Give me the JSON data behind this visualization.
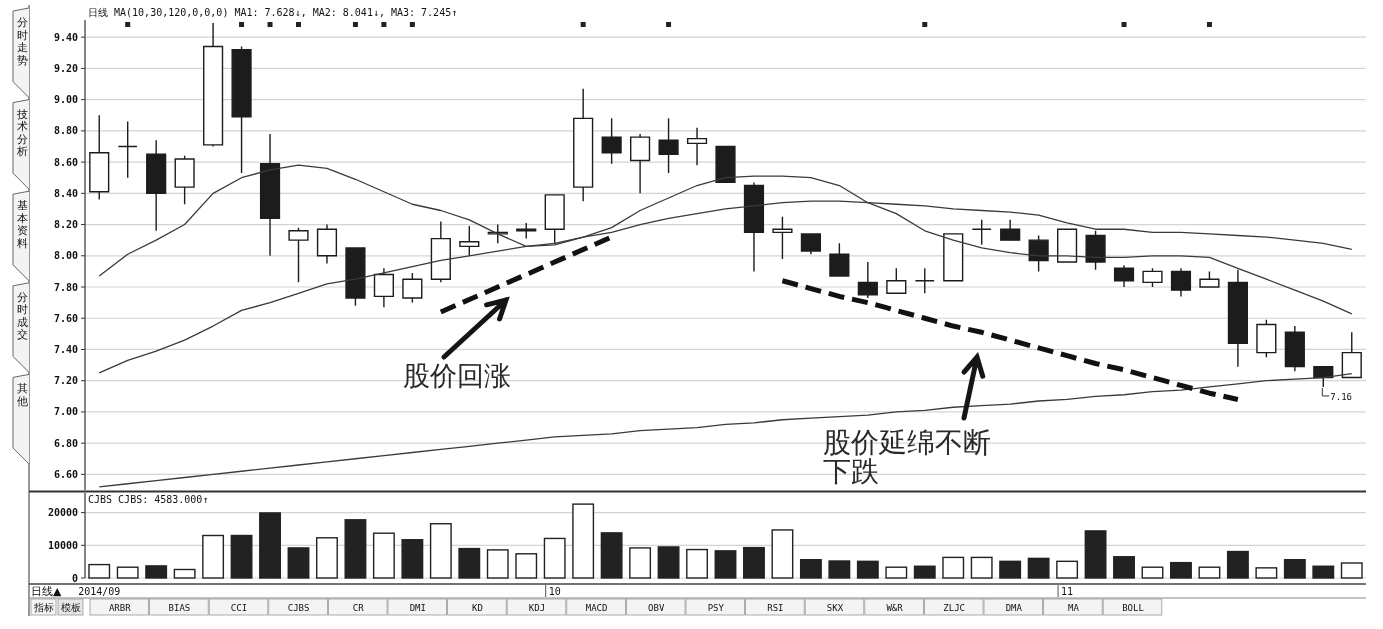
{
  "chart_data": [
    {
      "type": "other",
      "annotations": [
        "分时走势",
        "技术分析",
        "基本资料",
        "分时成交",
        "其他"
      ]
    },
    {
      "type": "candlestick",
      "title": "日线 MA(10,30,120,0,0,0) MA1: 7.628↓, MA2: 8.041↓, MA3: 7.245↑",
      "categories": [
        null,
        null,
        null,
        null,
        null,
        null,
        null,
        null,
        null,
        null,
        null,
        null,
        null,
        null,
        null,
        null,
        null,
        null,
        null,
        null,
        null,
        null,
        null,
        null,
        null,
        null,
        null,
        null,
        null,
        null,
        null,
        null,
        null,
        null,
        null,
        null,
        null,
        null,
        null,
        null,
        null,
        null,
        null,
        null,
        null
      ],
      "ohlc": [
        [
          8.41,
          8.9,
          8.36,
          8.66
        ],
        [
          8.7,
          8.86,
          8.5,
          8.7
        ],
        [
          8.65,
          8.74,
          8.16,
          8.4
        ],
        [
          8.44,
          8.64,
          8.33,
          8.62
        ],
        [
          8.71,
          9.49,
          8.7,
          9.34
        ],
        [
          9.32,
          9.34,
          8.53,
          8.89
        ],
        [
          8.59,
          8.78,
          8.0,
          8.24
        ],
        [
          8.1,
          8.18,
          7.83,
          8.16
        ],
        [
          8.0,
          8.2,
          7.95,
          8.17
        ],
        [
          8.05,
          8.05,
          7.68,
          7.73
        ],
        [
          7.74,
          7.92,
          7.67,
          7.88
        ],
        [
          7.73,
          7.89,
          7.7,
          7.85
        ],
        [
          7.85,
          8.22,
          7.83,
          8.11
        ],
        [
          8.06,
          8.19,
          8.0,
          8.09
        ],
        [
          8.14,
          8.2,
          8.08,
          8.15
        ],
        [
          8.16,
          8.21,
          8.11,
          8.17
        ],
        [
          8.17,
          8.39,
          8.08,
          8.39
        ],
        [
          8.44,
          9.07,
          8.35,
          8.88
        ],
        [
          8.76,
          8.88,
          8.59,
          8.66
        ],
        [
          8.61,
          8.78,
          8.4,
          8.76
        ],
        [
          8.74,
          8.88,
          8.53,
          8.65
        ],
        [
          8.72,
          8.82,
          8.58,
          8.75
        ],
        [
          8.7,
          8.7,
          8.47,
          8.47
        ],
        [
          8.45,
          8.47,
          7.9,
          8.15
        ],
        [
          8.15,
          8.25,
          7.98,
          8.17
        ],
        [
          8.14,
          8.14,
          8.01,
          8.03
        ],
        [
          8.01,
          8.08,
          7.87,
          7.87
        ],
        [
          7.83,
          7.96,
          7.73,
          7.75
        ],
        [
          7.76,
          7.92,
          7.76,
          7.84
        ],
        [
          7.84,
          7.92,
          7.76,
          7.84
        ],
        [
          7.84,
          8.14,
          7.84,
          8.14
        ],
        [
          8.17,
          8.23,
          8.07,
          8.17
        ],
        [
          8.17,
          8.23,
          8.1,
          8.1
        ],
        [
          8.1,
          8.13,
          7.9,
          7.97
        ],
        [
          7.96,
          8.17,
          7.96,
          8.17
        ],
        [
          8.13,
          8.16,
          7.91,
          7.96
        ],
        [
          7.92,
          7.94,
          7.8,
          7.84
        ],
        [
          7.83,
          7.92,
          7.8,
          7.9
        ],
        [
          7.9,
          7.92,
          7.74,
          7.78
        ],
        [
          7.8,
          7.9,
          7.8,
          7.85
        ],
        [
          7.83,
          7.91,
          7.29,
          7.44
        ],
        [
          7.38,
          7.59,
          7.35,
          7.56
        ],
        [
          7.51,
          7.55,
          7.26,
          7.29
        ],
        [
          7.29,
          7.29,
          7.16,
          7.22
        ],
        [
          7.22,
          7.51,
          7.22,
          7.38
        ]
      ],
      "series": [
        {
          "type": "line",
          "color": "#3a3a3a",
          "values": [
            7.87,
            8.01,
            8.1,
            8.2,
            8.4,
            8.5,
            8.55,
            8.58,
            8.56,
            8.49,
            8.41,
            8.33,
            8.29,
            8.23,
            8.14,
            8.06,
            8.07,
            8.12,
            8.18,
            8.29,
            8.37,
            8.45,
            8.5,
            8.51,
            8.51,
            8.5,
            8.45,
            8.34,
            8.27,
            8.16,
            8.1,
            8.05,
            8.02,
            8.0,
            8.0,
            7.99,
            7.99,
            8.0,
            8.0,
            7.99,
            7.92,
            7.85,
            7.78,
            7.71,
            7.628
          ]
        },
        {
          "type": "line",
          "color": "#3a3a3a",
          "values": [
            7.25,
            7.33,
            7.39,
            7.46,
            7.55,
            7.65,
            7.7,
            7.76,
            7.82,
            7.85,
            7.89,
            7.93,
            7.97,
            8.0,
            8.03,
            8.06,
            8.08,
            8.12,
            8.15,
            8.2,
            8.24,
            8.27,
            8.3,
            8.32,
            8.34,
            8.35,
            8.35,
            8.34,
            8.33,
            8.32,
            8.3,
            8.29,
            8.28,
            8.26,
            8.21,
            8.17,
            8.17,
            8.15,
            8.15,
            8.14,
            8.13,
            8.12,
            8.1,
            8.08,
            8.041
          ]
        },
        {
          "type": "line",
          "color": "#3a3a3a",
          "values": [
            6.52,
            6.54,
            6.56,
            6.58,
            6.6,
            6.62,
            6.64,
            6.66,
            6.68,
            6.7,
            6.72,
            6.74,
            6.76,
            6.78,
            6.8,
            6.82,
            6.84,
            6.85,
            6.86,
            6.88,
            6.89,
            6.9,
            6.92,
            6.93,
            6.95,
            6.96,
            6.97,
            6.98,
            7.0,
            7.01,
            7.03,
            7.04,
            7.05,
            7.07,
            7.08,
            7.1,
            7.11,
            7.13,
            7.14,
            7.16,
            7.18,
            7.2,
            7.21,
            7.22,
            7.245
          ]
        },
        {
          "type": "line",
          "color": "#111111",
          "line_style": "dashed",
          "values": [
            null,
            null,
            null,
            null,
            null,
            null,
            null,
            null,
            null,
            null,
            null,
            null,
            7.64,
            7.72,
            7.8,
            7.88,
            7.96,
            8.04,
            8.12,
            null,
            null,
            null,
            null,
            null,
            null,
            null,
            null,
            null,
            null,
            null,
            null,
            null,
            null,
            null,
            null,
            null,
            null,
            null,
            null,
            null,
            null,
            null,
            null,
            null,
            null
          ]
        },
        {
          "type": "line",
          "color": "#111111",
          "line_style": "dashed",
          "values": [
            null,
            null,
            null,
            null,
            null,
            null,
            null,
            null,
            null,
            null,
            null,
            null,
            null,
            null,
            null,
            null,
            null,
            null,
            null,
            null,
            null,
            null,
            null,
            null,
            7.84,
            7.79,
            7.74,
            7.7,
            7.65,
            7.6,
            7.55,
            7.51,
            7.46,
            7.41,
            7.36,
            7.31,
            7.27,
            7.22,
            7.17,
            7.12,
            7.08,
            null,
            null,
            null,
            null
          ]
        }
      ],
      "ylim": [
        6.5,
        9.51
      ],
      "yticks": [
        {
          "value": 6.6,
          "label": "6.60"
        },
        {
          "value": 6.8,
          "label": "6.80"
        },
        {
          "value": 7.0,
          "label": "7.00"
        },
        {
          "value": 7.2,
          "label": "7.20"
        },
        {
          "value": 7.4,
          "label": "7.40"
        },
        {
          "value": 7.6,
          "label": "7.60"
        },
        {
          "value": 7.8,
          "label": "7.80"
        },
        {
          "value": 8.0,
          "label": "8.00"
        },
        {
          "value": 8.2,
          "label": "8.20"
        },
        {
          "value": 8.4,
          "label": "8.40"
        },
        {
          "value": 8.6,
          "label": "8.60"
        },
        {
          "value": 8.8,
          "label": "8.80"
        },
        {
          "value": 9.0,
          "label": "9.00"
        },
        {
          "value": 9.2,
          "label": "9.20"
        },
        {
          "value": 9.4,
          "label": "9.40"
        }
      ],
      "grid": "y",
      "annotations": [
        "股价回涨",
        "股价延绵不断下跌",
        "7.16"
      ]
    },
    {
      "type": "bar",
      "title": "CJBS CJBS: 4583.000↑",
      "xlabel": "日线▲",
      "categories": [
        "2014/09",
        null,
        null,
        null,
        null,
        null,
        null,
        null,
        null,
        null,
        null,
        null,
        null,
        null,
        null,
        null,
        "10",
        null,
        null,
        null,
        null,
        null,
        null,
        null,
        null,
        null,
        null,
        null,
        null,
        null,
        null,
        null,
        null,
        null,
        "11",
        null,
        null,
        null,
        null,
        null,
        null,
        null,
        null,
        null,
        null
      ],
      "values": [
        4100,
        3300,
        3700,
        2600,
        13000,
        13000,
        19900,
        9200,
        12300,
        17800,
        13700,
        11700,
        16600,
        9000,
        8600,
        7400,
        12100,
        22600,
        13800,
        9200,
        9500,
        8700,
        8300,
        9300,
        14700,
        5600,
        5200,
        5100,
        3300,
        3600,
        6300,
        6300,
        5100,
        6000,
        5100,
        14400,
        6500,
        3300,
        4700,
        3300,
        8100,
        3100,
        5600,
        3600,
        4583
      ],
      "colors": [
        "#ffffff",
        "#ffffff",
        "#222222",
        "#ffffff",
        "#ffffff",
        "#222222",
        "#222222",
        "#222222",
        "#ffffff",
        "#222222",
        "#ffffff",
        "#222222",
        "#ffffff",
        "#222222",
        "#ffffff",
        "#ffffff",
        "#ffffff",
        "#ffffff",
        "#222222",
        "#ffffff",
        "#222222",
        "#ffffff",
        "#222222",
        "#222222",
        "#ffffff",
        "#222222",
        "#222222",
        "#222222",
        "#ffffff",
        "#222222",
        "#ffffff",
        "#ffffff",
        "#222222",
        "#222222",
        "#ffffff",
        "#222222",
        "#222222",
        "#ffffff",
        "#222222",
        "#ffffff",
        "#222222",
        "#ffffff",
        "#222222",
        "#222222",
        "#ffffff"
      ],
      "ylim": [
        0,
        26000
      ],
      "yticks": [
        0,
        10000,
        20000
      ],
      "grid": "y"
    },
    {
      "type": "other",
      "annotations": [
        "指标",
        "模板",
        "ARBR",
        "BIAS",
        "CCI",
        "CJBS",
        "CR",
        "DMI",
        "KD",
        "KDJ",
        "MACD",
        "OBV",
        "PSY",
        "RSI",
        "SKX",
        "W&R",
        "ZLJC",
        "DMA",
        "MA",
        "BOLL"
      ]
    }
  ]
}
